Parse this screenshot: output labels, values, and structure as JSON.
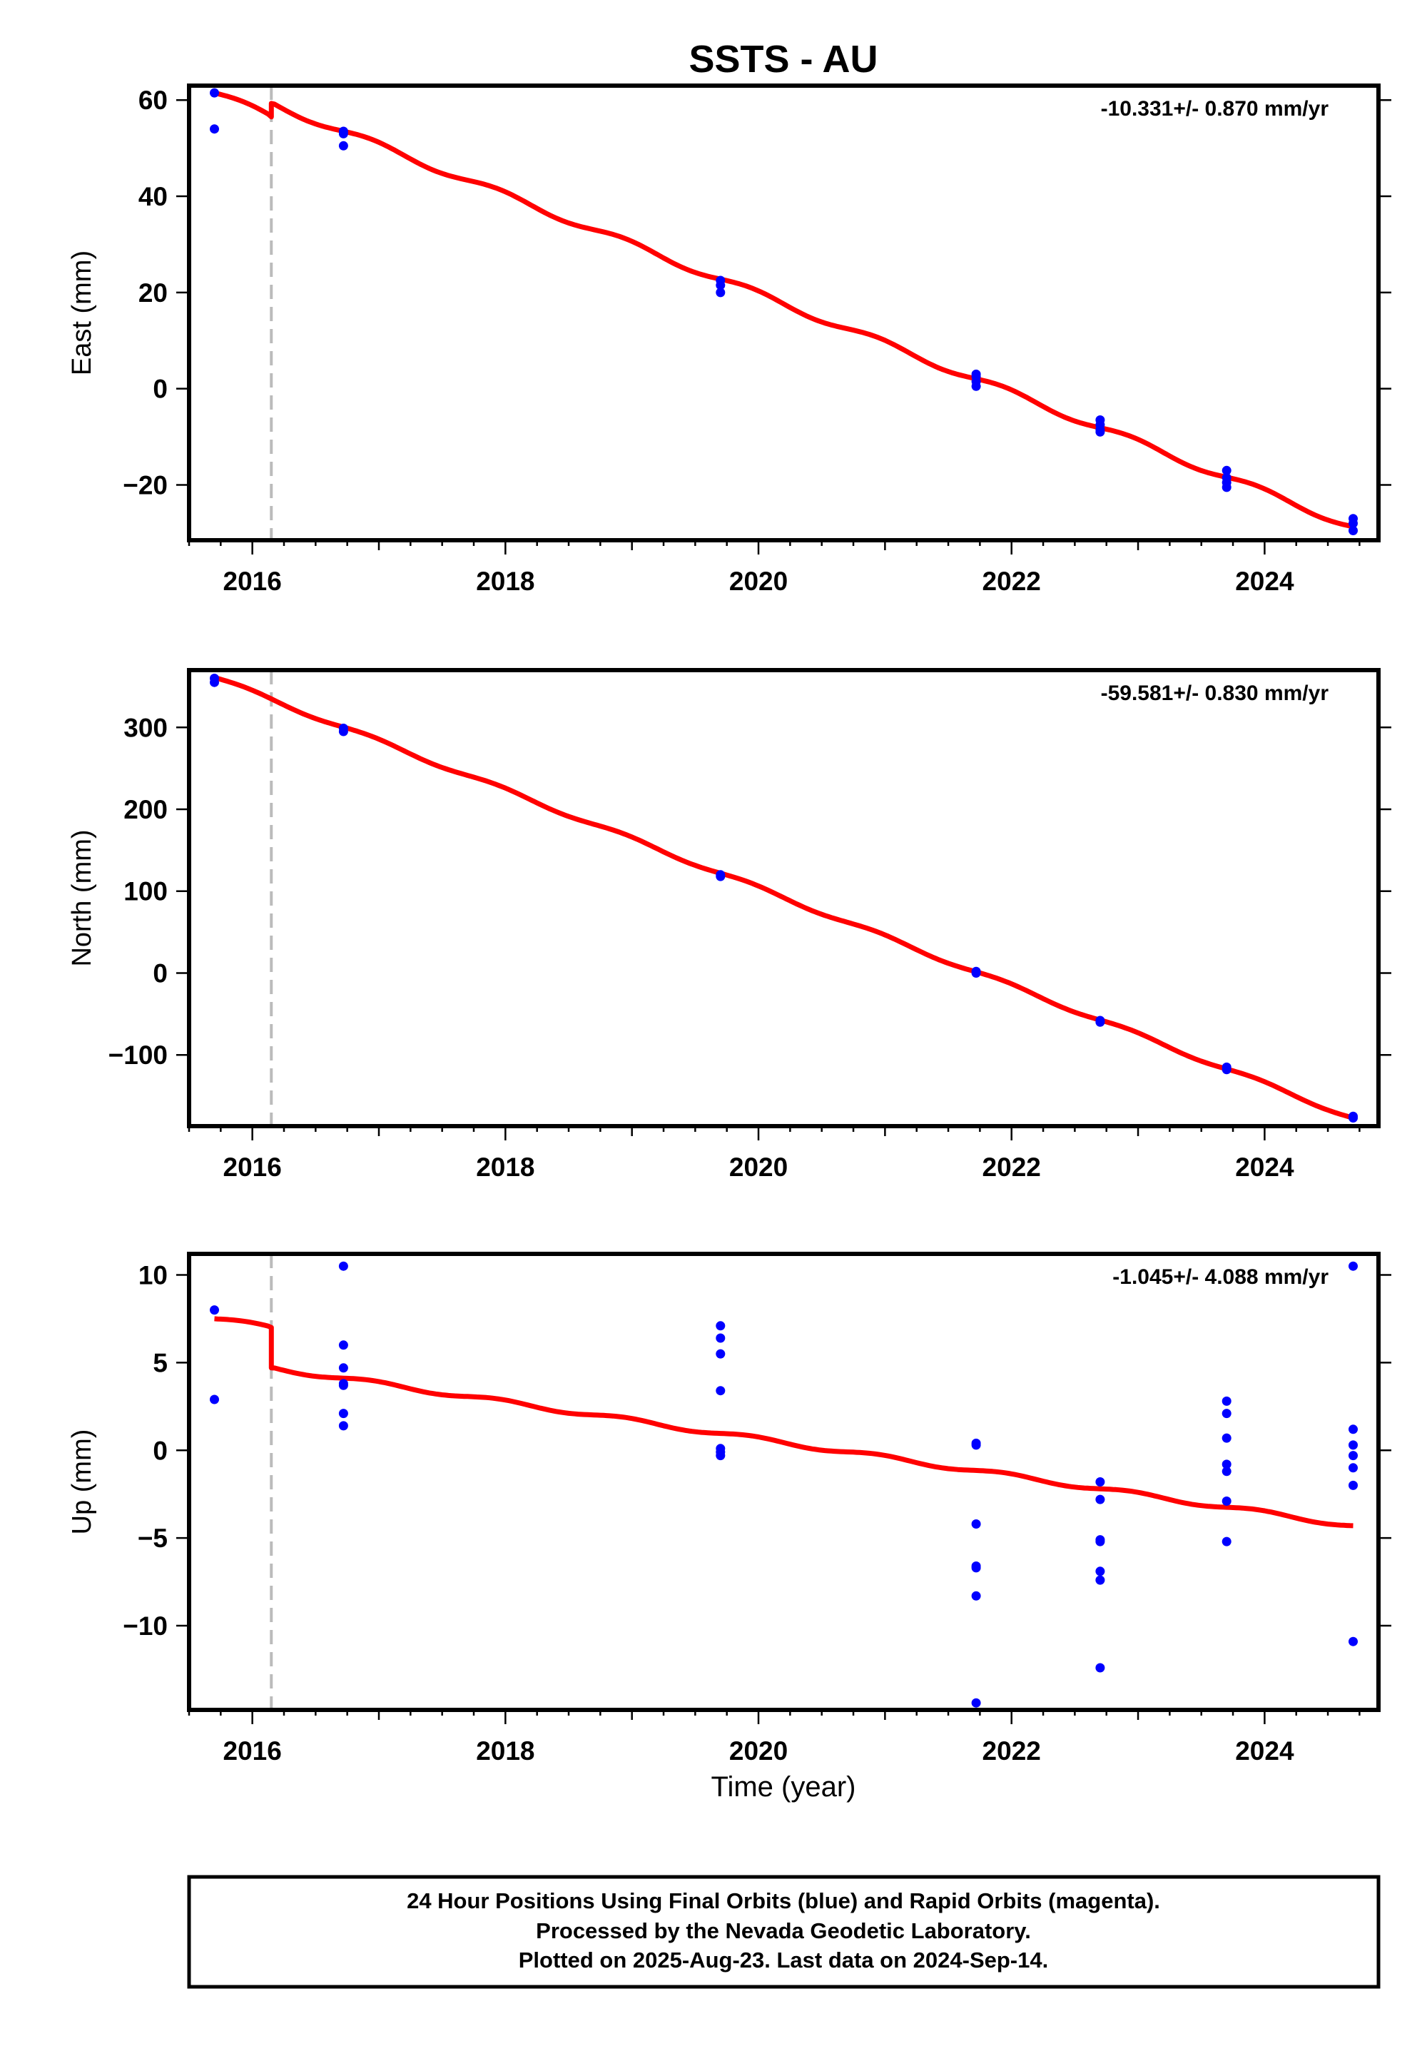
{
  "chart_data": {
    "type": "scatter",
    "title": "SSTS - AU",
    "xlabel": "Time (year)",
    "xlim": [
      2015.5,
      2024.9
    ],
    "x_ticks": [
      2016,
      2018,
      2020,
      2022,
      2024
    ],
    "offset_line_year": 2016.15,
    "point_color": "#0000ff",
    "model_color": "#ff0000",
    "offset_color": "#bbbbbb",
    "panels": [
      {
        "name": "east",
        "ylabel": "East (mm)",
        "rate_label": "-10.331+/- 0.870 mm/yr",
        "ylim": [
          -31.5,
          63
        ],
        "y_ticks": [
          60,
          40,
          20,
          0,
          -20
        ],
        "y_tick_labels": [
          "60",
          "40",
          "20",
          "0",
          "−20"
        ],
        "points": [
          [
            2015.7,
            61.5
          ],
          [
            2015.7,
            54.0
          ],
          [
            2016.72,
            53.5
          ],
          [
            2016.72,
            50.5
          ],
          [
            2016.72,
            53.0
          ],
          [
            2019.7,
            22.5
          ],
          [
            2019.7,
            20.0
          ],
          [
            2019.7,
            21.5
          ],
          [
            2021.72,
            2.5
          ],
          [
            2021.72,
            0.5
          ],
          [
            2021.72,
            1.5
          ],
          [
            2021.72,
            3.0
          ],
          [
            2022.7,
            -6.5
          ],
          [
            2022.7,
            -9.0
          ],
          [
            2022.7,
            -7.5
          ],
          [
            2022.7,
            -8.5
          ],
          [
            2023.7,
            -17.0
          ],
          [
            2023.7,
            -20.5
          ],
          [
            2023.7,
            -18.5
          ],
          [
            2023.7,
            -19.5
          ],
          [
            2024.7,
            -27.0
          ],
          [
            2024.7,
            -29.5
          ],
          [
            2024.7,
            -28.0
          ]
        ],
        "model": [
          [
            2015.7,
            61.5
          ],
          [
            2016.15,
            56.5
          ],
          [
            2016.15,
            59.3
          ],
          [
            2024.7,
            -28.7
          ]
        ],
        "wiggle": 0.7
      },
      {
        "name": "north",
        "ylabel": "North (mm)",
        "rate_label": "-59.581+/- 0.830 mm/yr",
        "ylim": [
          -187,
          370
        ],
        "y_ticks": [
          300,
          200,
          100,
          0,
          -100
        ],
        "y_tick_labels": [
          "300",
          "200",
          "100",
          "0",
          "−100"
        ],
        "points": [
          [
            2015.7,
            360
          ],
          [
            2015.7,
            355
          ],
          [
            2016.72,
            299
          ],
          [
            2016.72,
            295
          ],
          [
            2019.7,
            120
          ],
          [
            2019.7,
            118
          ],
          [
            2021.72,
            2
          ],
          [
            2021.72,
            0
          ],
          [
            2022.7,
            -58
          ],
          [
            2022.7,
            -60
          ],
          [
            2023.7,
            -115
          ],
          [
            2023.7,
            -118
          ],
          [
            2024.7,
            -175
          ],
          [
            2024.7,
            -177
          ]
        ],
        "model": [
          [
            2015.7,
            361
          ],
          [
            2024.7,
            -177
          ]
        ],
        "wiggle": 2.5
      },
      {
        "name": "up",
        "ylabel": "Up (mm)",
        "rate_label": "-1.045+/- 4.088 mm/yr",
        "ylim": [
          -14.8,
          11.2
        ],
        "y_ticks": [
          10,
          5,
          0,
          -5,
          -10
        ],
        "y_tick_labels": [
          "10",
          "5",
          "0",
          "−5",
          "−10"
        ],
        "points": [
          [
            2015.7,
            8.0
          ],
          [
            2015.7,
            2.9
          ],
          [
            2016.72,
            10.5
          ],
          [
            2016.72,
            6.0
          ],
          [
            2016.72,
            4.7
          ],
          [
            2016.72,
            3.8
          ],
          [
            2016.72,
            3.7
          ],
          [
            2016.72,
            2.1
          ],
          [
            2016.72,
            1.4
          ],
          [
            2019.7,
            7.1
          ],
          [
            2019.7,
            6.4
          ],
          [
            2019.7,
            5.5
          ],
          [
            2019.7,
            3.4
          ],
          [
            2019.7,
            0.1
          ],
          [
            2019.7,
            -0.1
          ],
          [
            2019.7,
            -0.3
          ],
          [
            2021.72,
            0.4
          ],
          [
            2021.72,
            0.3
          ],
          [
            2021.72,
            -4.2
          ],
          [
            2021.72,
            -6.6
          ],
          [
            2021.72,
            -6.7
          ],
          [
            2021.72,
            -8.3
          ],
          [
            2021.72,
            -14.4
          ],
          [
            2022.7,
            -1.8
          ],
          [
            2022.7,
            -2.8
          ],
          [
            2022.7,
            -5.1
          ],
          [
            2022.7,
            -5.2
          ],
          [
            2022.7,
            -6.9
          ],
          [
            2022.7,
            -7.4
          ],
          [
            2022.7,
            -12.4
          ],
          [
            2023.7,
            2.8
          ],
          [
            2023.7,
            2.1
          ],
          [
            2023.7,
            0.7
          ],
          [
            2023.7,
            -0.8
          ],
          [
            2023.7,
            -1.2
          ],
          [
            2023.7,
            -2.9
          ],
          [
            2023.7,
            -5.2
          ],
          [
            2024.7,
            10.5
          ],
          [
            2024.7,
            1.2
          ],
          [
            2024.7,
            0.3
          ],
          [
            2024.7,
            -0.3
          ],
          [
            2024.7,
            -1.0
          ],
          [
            2024.7,
            -2.0
          ],
          [
            2024.7,
            -10.9
          ]
        ],
        "model": [
          [
            2015.7,
            7.5
          ],
          [
            2016.15,
            7.0
          ],
          [
            2016.15,
            4.7
          ],
          [
            2024.7,
            -4.3
          ]
        ],
        "wiggle": 0.12
      }
    ]
  },
  "footer": {
    "line1": "24 Hour Positions Using Final Orbits (blue) and Rapid Orbits (magenta).",
    "line2": "Processed by the Nevada Geodetic Laboratory.",
    "line3": "Plotted on 2025-Aug-23. Last data on 2024-Sep-14."
  }
}
